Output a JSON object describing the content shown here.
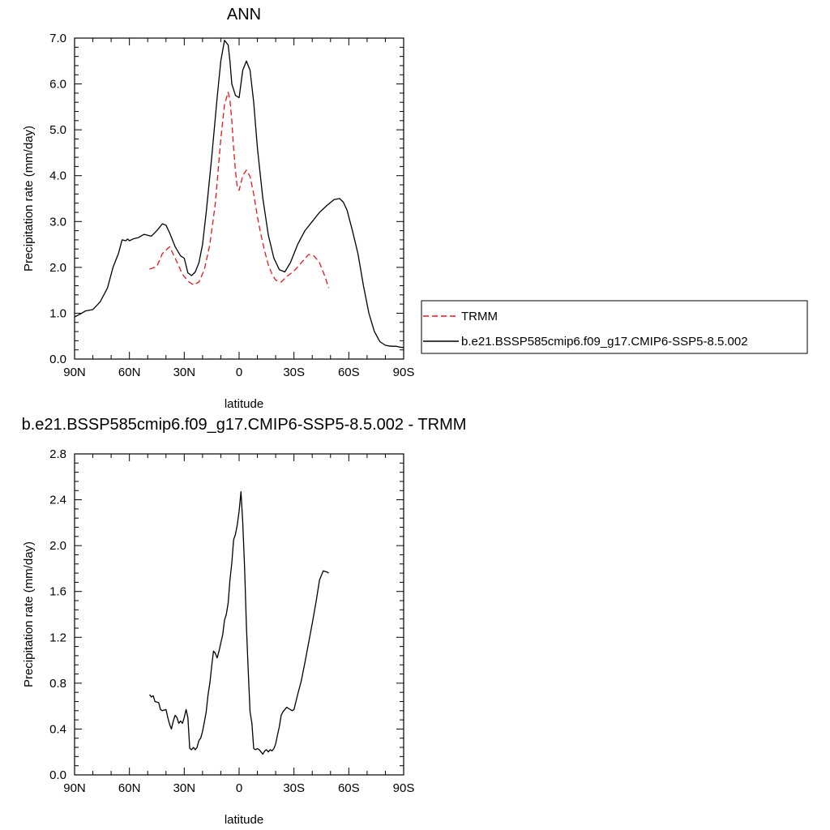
{
  "colors": {
    "trmm": "#e8161b",
    "model": "#000000"
  },
  "chart_data": [
    {
      "type": "line",
      "title": "ANN",
      "xlabel": "latitude",
      "ylabel": "Precipitation rate (mm/day)",
      "xlim": [
        90,
        -90
      ],
      "ylim": [
        0,
        7
      ],
      "xticks": [
        {
          "value": 90,
          "label": "90N"
        },
        {
          "value": 60,
          "label": "60N"
        },
        {
          "value": 30,
          "label": "30N"
        },
        {
          "value": 0,
          "label": "0"
        },
        {
          "value": -30,
          "label": "30S"
        },
        {
          "value": -60,
          "label": "60S"
        },
        {
          "value": -90,
          "label": "90S"
        }
      ],
      "yticks": [
        {
          "value": 0,
          "label": "0.0"
        },
        {
          "value": 1,
          "label": "1.0"
        },
        {
          "value": 2,
          "label": "2.0"
        },
        {
          "value": 3,
          "label": "3.0"
        },
        {
          "value": 4,
          "label": "4.0"
        },
        {
          "value": 5,
          "label": "5.0"
        },
        {
          "value": 6,
          "label": "6.0"
        },
        {
          "value": 7,
          "label": "7.0"
        }
      ],
      "legend_position": "right",
      "series": [
        {
          "name": "TRMM",
          "color": "#e8161b",
          "dash": "dashed",
          "x": [
            49,
            45,
            42,
            38,
            35,
            31,
            28,
            25,
            22,
            19,
            16,
            13,
            10,
            8,
            6,
            5,
            4,
            3,
            2,
            1,
            0,
            -2,
            -4,
            -6,
            -8,
            -10,
            -12,
            -14,
            -16,
            -18,
            -20,
            -23,
            -26,
            -30,
            -34,
            -38,
            -41,
            -44,
            -47,
            -49
          ],
          "y": [
            1.96,
            2.02,
            2.3,
            2.45,
            2.2,
            1.85,
            1.7,
            1.62,
            1.68,
            1.95,
            2.5,
            3.4,
            4.8,
            5.55,
            5.82,
            5.65,
            5.2,
            4.6,
            4.1,
            3.75,
            3.68,
            4.0,
            4.12,
            3.98,
            3.6,
            3.1,
            2.7,
            2.35,
            2.05,
            1.85,
            1.72,
            1.68,
            1.8,
            1.92,
            2.1,
            2.28,
            2.25,
            2.1,
            1.8,
            1.55
          ]
        },
        {
          "name": "b.e21.BSSP585cmip6.f09_g17.CMIP6-SSP5-8.5.002",
          "color": "#000000",
          "dash": "solid",
          "x": [
            90,
            87,
            84,
            80,
            76,
            72,
            69,
            66,
            64,
            62,
            61,
            60,
            58,
            55,
            52,
            48,
            45,
            42,
            40,
            38,
            35,
            32,
            30,
            28,
            26,
            24,
            22,
            20,
            18,
            15,
            12,
            10,
            8,
            6,
            5,
            4,
            2,
            0,
            -2,
            -4,
            -6,
            -8,
            -10,
            -13,
            -16,
            -19,
            -22,
            -25,
            -28,
            -32,
            -36,
            -40,
            -44,
            -48,
            -52,
            -55,
            -57,
            -59,
            -62,
            -65,
            -68,
            -71,
            -74,
            -77,
            -80,
            -83,
            -86,
            -88,
            -90
          ],
          "y": [
            0.92,
            0.98,
            1.05,
            1.08,
            1.25,
            1.55,
            2.0,
            2.3,
            2.6,
            2.58,
            2.62,
            2.58,
            2.62,
            2.65,
            2.72,
            2.68,
            2.8,
            2.95,
            2.92,
            2.75,
            2.45,
            2.25,
            2.2,
            1.88,
            1.82,
            1.9,
            2.1,
            2.5,
            3.2,
            4.4,
            5.7,
            6.5,
            6.95,
            6.85,
            6.5,
            6.0,
            5.75,
            5.7,
            6.3,
            6.5,
            6.3,
            5.6,
            4.6,
            3.5,
            2.7,
            2.2,
            1.95,
            1.9,
            2.1,
            2.5,
            2.8,
            3.0,
            3.2,
            3.35,
            3.48,
            3.5,
            3.42,
            3.25,
            2.8,
            2.3,
            1.6,
            1.0,
            0.6,
            0.38,
            0.3,
            0.28,
            0.28,
            0.26,
            0.25
          ]
        }
      ]
    },
    {
      "type": "line",
      "title": "b.e21.BSSP585cmip6.f09_g17.CMIP6-SSP5-8.5.002 - TRMM",
      "xlabel": "latitude",
      "ylabel": "Precipitation rate (mm/day)",
      "xlim": [
        90,
        -90
      ],
      "ylim": [
        0,
        2.8
      ],
      "xticks": [
        {
          "value": 90,
          "label": "90N"
        },
        {
          "value": 60,
          "label": "60N"
        },
        {
          "value": 30,
          "label": "30N"
        },
        {
          "value": 0,
          "label": "0"
        },
        {
          "value": -30,
          "label": "30S"
        },
        {
          "value": -60,
          "label": "60S"
        },
        {
          "value": -90,
          "label": "90S"
        }
      ],
      "yticks": [
        {
          "value": 0,
          "label": "0.0"
        },
        {
          "value": 0.4,
          "label": "0.4"
        },
        {
          "value": 0.8,
          "label": "0.8"
        },
        {
          "value": 1.2,
          "label": "1.2"
        },
        {
          "value": 1.6,
          "label": "1.6"
        },
        {
          "value": 2.0,
          "label": "2.0"
        },
        {
          "value": 2.4,
          "label": "2.4"
        },
        {
          "value": 2.8,
          "label": "2.8"
        }
      ],
      "series": [
        {
          "name": "",
          "color": "#000000",
          "dash": "solid",
          "x": [
            49,
            48,
            47,
            46,
            44,
            43,
            42,
            40,
            39,
            38,
            37,
            36,
            35,
            34,
            33,
            32,
            31,
            30,
            29,
            28,
            27,
            26,
            25,
            24,
            23,
            22,
            21,
            20,
            19,
            18,
            17,
            16,
            15,
            14,
            13,
            12,
            11,
            10,
            9,
            8,
            7,
            6,
            5,
            4,
            3,
            2,
            1,
            0,
            -1,
            -2,
            -3,
            -4,
            -5,
            -6,
            -7,
            -8,
            -9,
            -10,
            -11,
            -12,
            -13,
            -14,
            -15,
            -16,
            -17,
            -18,
            -19,
            -20,
            -21,
            -22,
            -23,
            -24,
            -25,
            -26,
            -27,
            -28,
            -29,
            -30,
            -32,
            -34,
            -36,
            -38,
            -40,
            -42,
            -44,
            -46,
            -48,
            -49
          ],
          "y": [
            0.7,
            0.68,
            0.69,
            0.64,
            0.63,
            0.57,
            0.56,
            0.57,
            0.5,
            0.44,
            0.4,
            0.47,
            0.52,
            0.5,
            0.45,
            0.47,
            0.45,
            0.5,
            0.57,
            0.5,
            0.23,
            0.22,
            0.24,
            0.22,
            0.24,
            0.3,
            0.32,
            0.38,
            0.46,
            0.55,
            0.7,
            0.8,
            0.95,
            1.08,
            1.06,
            1.02,
            1.08,
            1.15,
            1.22,
            1.35,
            1.4,
            1.5,
            1.7,
            1.85,
            2.05,
            2.1,
            2.18,
            2.3,
            2.47,
            2.2,
            1.8,
            1.3,
            0.9,
            0.55,
            0.45,
            0.23,
            0.22,
            0.23,
            0.22,
            0.2,
            0.18,
            0.21,
            0.22,
            0.2,
            0.22,
            0.21,
            0.23,
            0.27,
            0.35,
            0.42,
            0.52,
            0.55,
            0.57,
            0.59,
            0.58,
            0.57,
            0.56,
            0.57,
            0.7,
            0.82,
            0.98,
            1.15,
            1.32,
            1.5,
            1.7,
            1.78,
            1.77,
            1.76
          ]
        }
      ]
    }
  ]
}
